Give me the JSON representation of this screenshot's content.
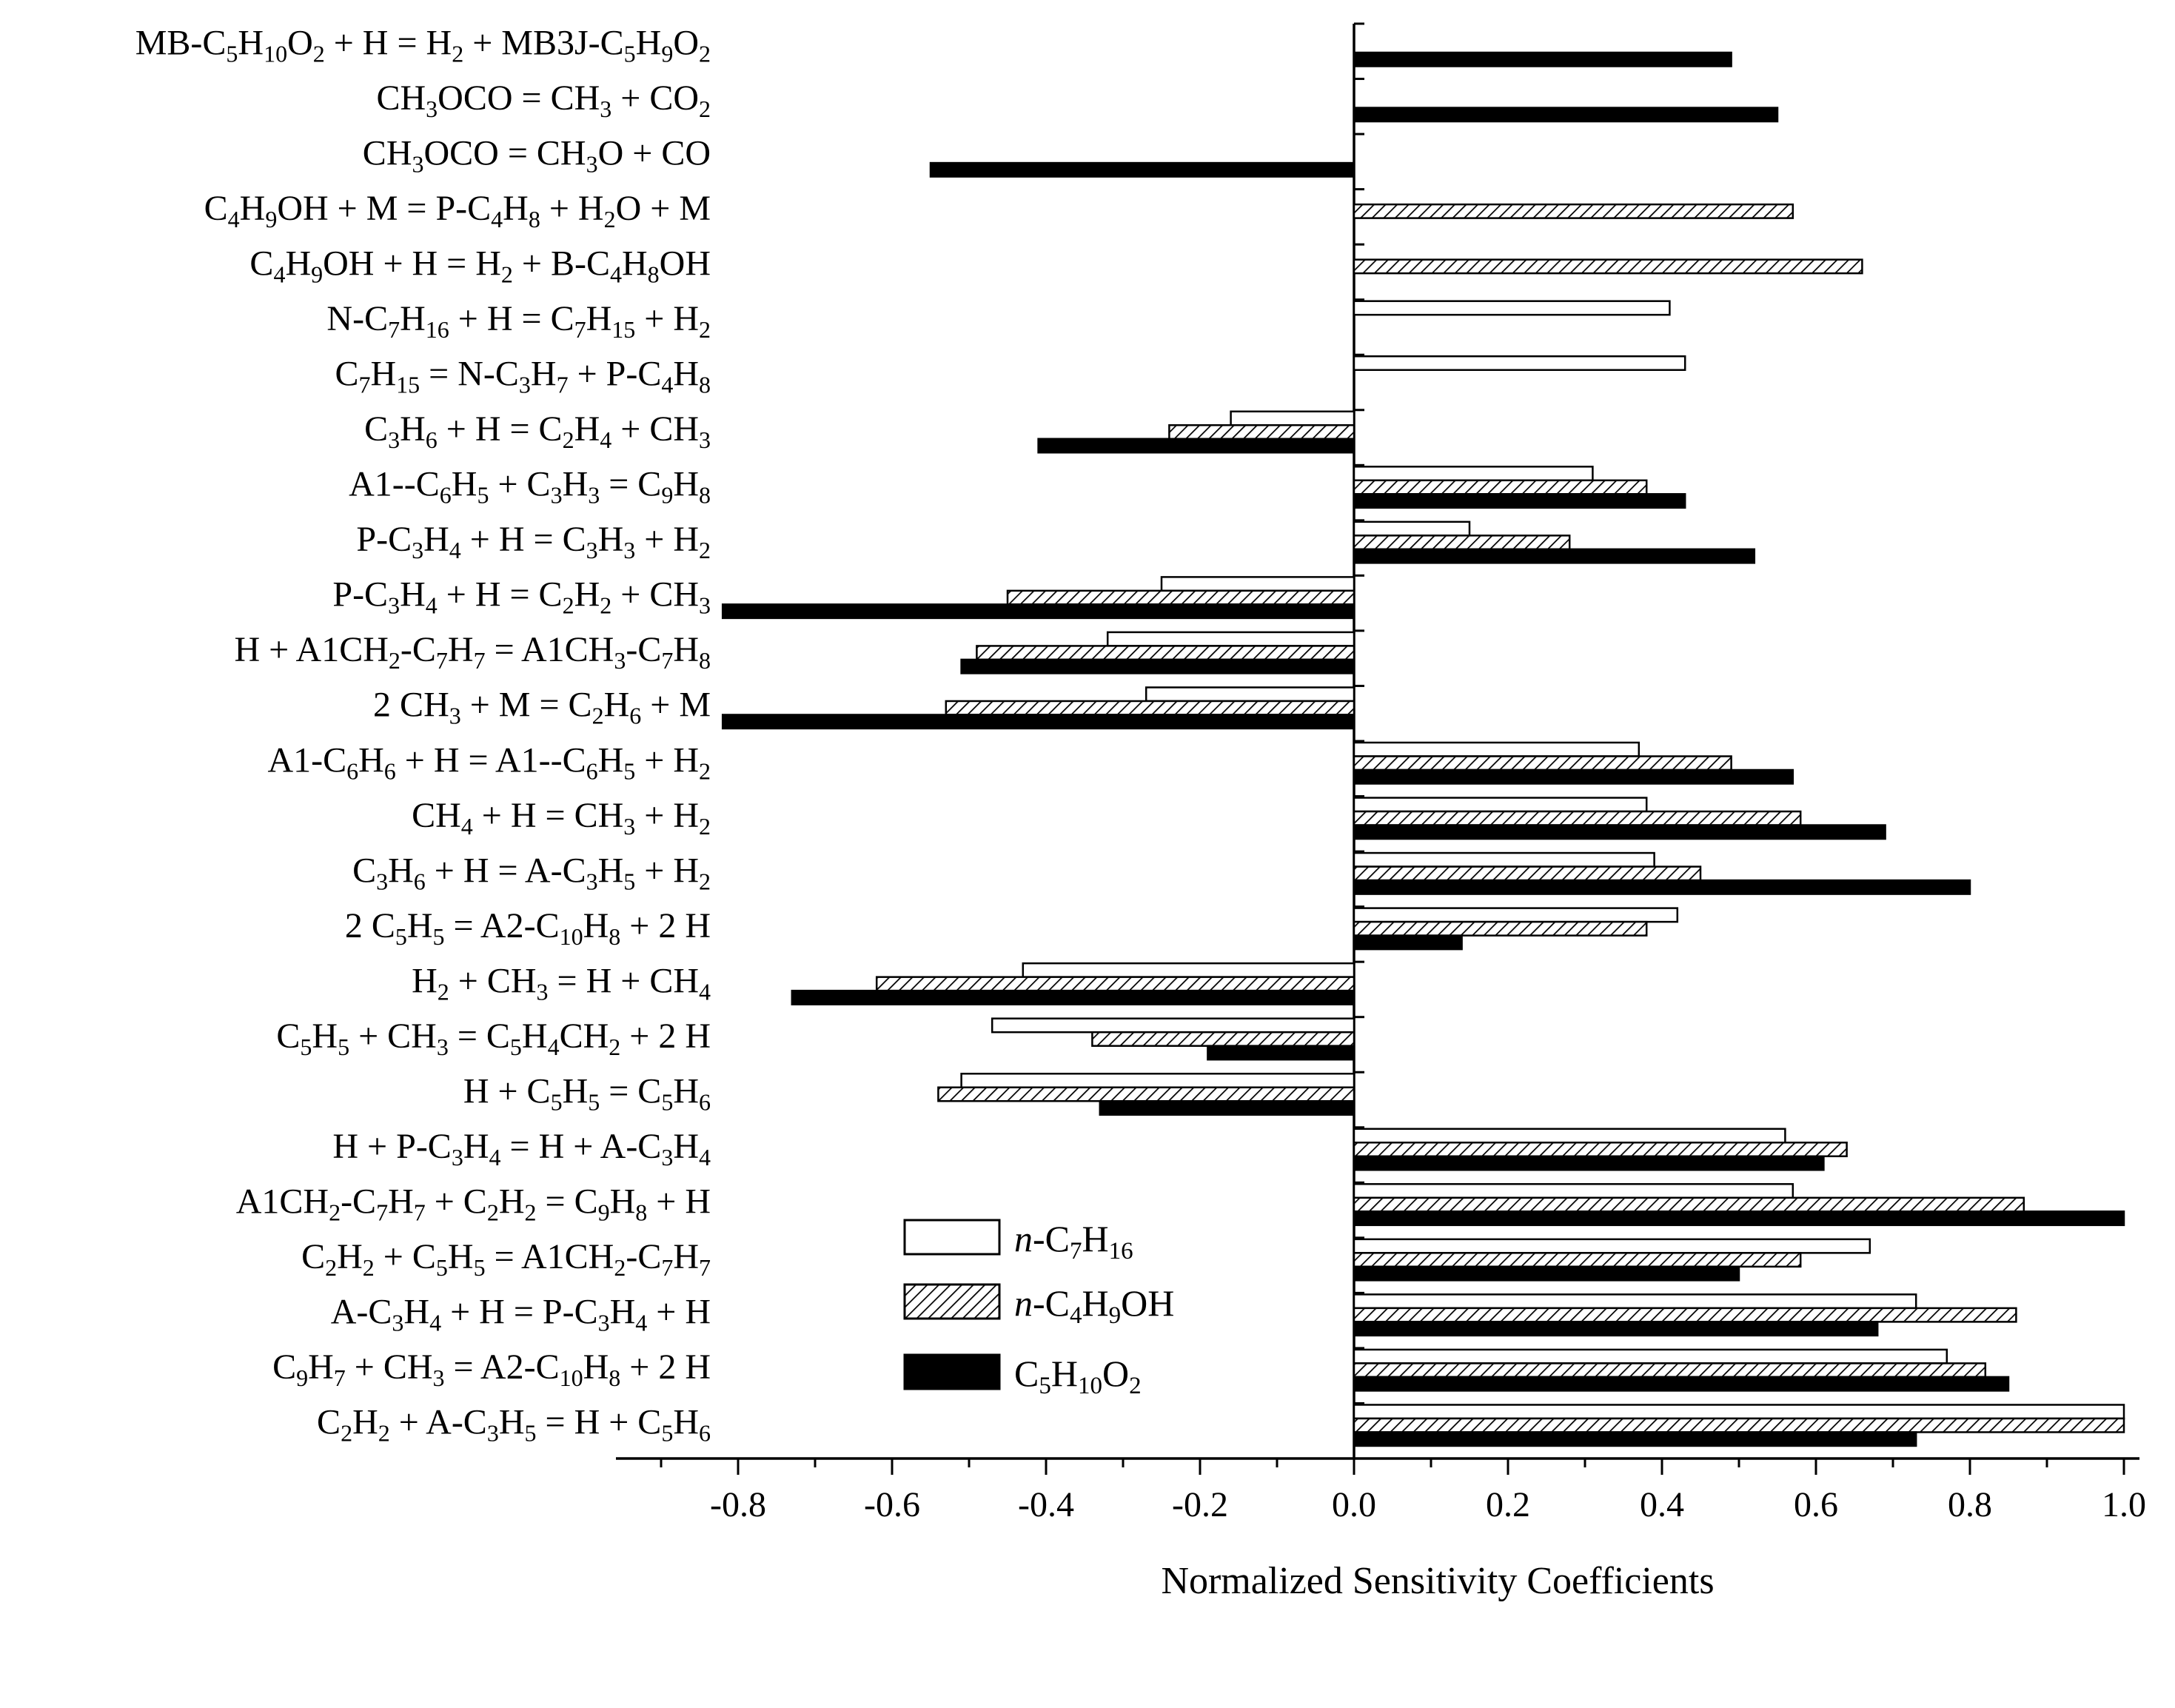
{
  "chart_data": {
    "type": "bar",
    "orientation": "horizontal",
    "xlabel": "Normalized Sensitivity Coefficients",
    "xlim": [
      -0.96,
      1.04
    ],
    "xticks": [
      "-0.8",
      "-0.6",
      "-0.4",
      "-0.2",
      "0.0",
      "0.2",
      "0.4",
      "0.6",
      "0.8",
      "1.0"
    ],
    "legend_position": "bottom-center",
    "categories": [
      "MB-C5H10O2 + H = H2 + MB3J-C5H9O2",
      "CH3OCO = CH3 + CO2",
      "CH3OCO = CH3O + CO",
      "C4H9OH + M = P-C4H8 + H2O + M",
      "C4H9OH + H = H2 + B-C4H8OH",
      "N-C7H16 + H = C7H15 + H2",
      "C7H15 = N-C3H7 + P-C4H8",
      "C3H6 + H = C2H4 + CH3",
      "A1--C6H5 + C3H3 = C9H8",
      "P-C3H4 + H = C3H3 + H2",
      "P-C3H4 + H = C2H2 + CH3",
      "H + A1CH2-C7H7 = A1CH3-C7H8",
      "2 CH3 + M = C2H6 + M",
      "A1-C6H6 + H = A1--C6H5 + H2",
      "CH4 + H = CH3 + H2",
      "C3H6 + H = A-C3H5 + H2",
      "2 C5H5 = A2-C10H8 + 2 H",
      "H2 + CH3 = H + CH4",
      "C5H5 + CH3 = C5H4CH2 + 2 H",
      "H + C5H5 = C5H6",
      "H + P-C3H4 = H + A-C3H4",
      "A1CH2-C7H7 + C2H2 = C9H8 + H",
      "C2H2 + C5H5 = A1CH2-C7H7",
      "A-C3H4 + H = P-C3H4 + H",
      "C9H7 + CH3 = A2-C10H8 + 2 H",
      "C2H2 + A-C3H5 = H + C5H6"
    ],
    "series": [
      {
        "name": "n-C7H16",
        "fill": "white",
        "values": [
          0,
          0,
          0,
          0,
          0,
          0.41,
          0.43,
          -0.16,
          0.31,
          0.15,
          -0.25,
          -0.32,
          -0.27,
          0.37,
          0.38,
          0.39,
          0.42,
          -0.43,
          -0.47,
          -0.51,
          0.56,
          0.57,
          0.67,
          0.73,
          0.77,
          1.0
        ]
      },
      {
        "name": "n-C4H9OH",
        "fill": "hatched",
        "values": [
          0,
          0,
          0,
          0.57,
          0.66,
          0,
          0,
          -0.24,
          0.38,
          0.28,
          -0.45,
          -0.49,
          -0.53,
          0.49,
          0.58,
          0.45,
          0.38,
          -0.62,
          -0.34,
          -0.54,
          0.64,
          0.87,
          0.58,
          0.86,
          0.82,
          1.0
        ]
      },
      {
        "name": "C5H10O2",
        "fill": "black",
        "values": [
          0.49,
          0.55,
          -0.55,
          0,
          0,
          0,
          0,
          -0.41,
          0.43,
          0.52,
          -0.82,
          -0.51,
          -0.82,
          0.57,
          0.69,
          0.8,
          0.14,
          -0.73,
          -0.19,
          -0.33,
          0.61,
          1.0,
          0.5,
          0.68,
          0.85,
          0.73
        ]
      }
    ]
  }
}
